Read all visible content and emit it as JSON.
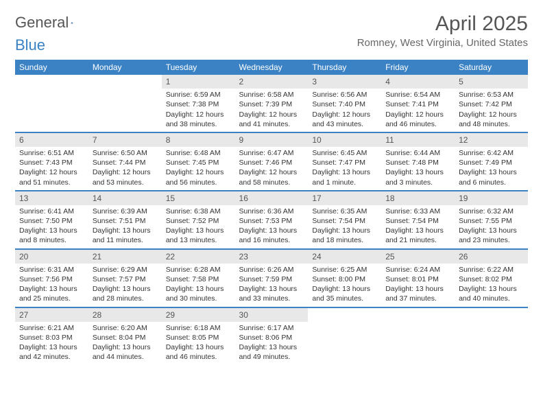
{
  "logo": {
    "part1": "General",
    "part2": "Blue"
  },
  "title": "April 2025",
  "location": "Romney, West Virginia, United States",
  "colors": {
    "accent": "#3b82c4",
    "daynum_bg": "#e8e8e8",
    "text": "#333333",
    "muted": "#555555",
    "background": "#ffffff"
  },
  "fonts": {
    "base": "Arial",
    "title_size": 30,
    "location_size": 15,
    "header_size": 12,
    "cell_size": 10.5
  },
  "day_headers": [
    "Sunday",
    "Monday",
    "Tuesday",
    "Wednesday",
    "Thursday",
    "Friday",
    "Saturday"
  ],
  "weeks": [
    [
      {
        "empty": true
      },
      {
        "empty": true
      },
      {
        "day": "1",
        "sunrise": "Sunrise: 6:59 AM",
        "sunset": "Sunset: 7:38 PM",
        "daylight": "Daylight: 12 hours and 38 minutes."
      },
      {
        "day": "2",
        "sunrise": "Sunrise: 6:58 AM",
        "sunset": "Sunset: 7:39 PM",
        "daylight": "Daylight: 12 hours and 41 minutes."
      },
      {
        "day": "3",
        "sunrise": "Sunrise: 6:56 AM",
        "sunset": "Sunset: 7:40 PM",
        "daylight": "Daylight: 12 hours and 43 minutes."
      },
      {
        "day": "4",
        "sunrise": "Sunrise: 6:54 AM",
        "sunset": "Sunset: 7:41 PM",
        "daylight": "Daylight: 12 hours and 46 minutes."
      },
      {
        "day": "5",
        "sunrise": "Sunrise: 6:53 AM",
        "sunset": "Sunset: 7:42 PM",
        "daylight": "Daylight: 12 hours and 48 minutes."
      }
    ],
    [
      {
        "day": "6",
        "sunrise": "Sunrise: 6:51 AM",
        "sunset": "Sunset: 7:43 PM",
        "daylight": "Daylight: 12 hours and 51 minutes."
      },
      {
        "day": "7",
        "sunrise": "Sunrise: 6:50 AM",
        "sunset": "Sunset: 7:44 PM",
        "daylight": "Daylight: 12 hours and 53 minutes."
      },
      {
        "day": "8",
        "sunrise": "Sunrise: 6:48 AM",
        "sunset": "Sunset: 7:45 PM",
        "daylight": "Daylight: 12 hours and 56 minutes."
      },
      {
        "day": "9",
        "sunrise": "Sunrise: 6:47 AM",
        "sunset": "Sunset: 7:46 PM",
        "daylight": "Daylight: 12 hours and 58 minutes."
      },
      {
        "day": "10",
        "sunrise": "Sunrise: 6:45 AM",
        "sunset": "Sunset: 7:47 PM",
        "daylight": "Daylight: 13 hours and 1 minute."
      },
      {
        "day": "11",
        "sunrise": "Sunrise: 6:44 AM",
        "sunset": "Sunset: 7:48 PM",
        "daylight": "Daylight: 13 hours and 3 minutes."
      },
      {
        "day": "12",
        "sunrise": "Sunrise: 6:42 AM",
        "sunset": "Sunset: 7:49 PM",
        "daylight": "Daylight: 13 hours and 6 minutes."
      }
    ],
    [
      {
        "day": "13",
        "sunrise": "Sunrise: 6:41 AM",
        "sunset": "Sunset: 7:50 PM",
        "daylight": "Daylight: 13 hours and 8 minutes."
      },
      {
        "day": "14",
        "sunrise": "Sunrise: 6:39 AM",
        "sunset": "Sunset: 7:51 PM",
        "daylight": "Daylight: 13 hours and 11 minutes."
      },
      {
        "day": "15",
        "sunrise": "Sunrise: 6:38 AM",
        "sunset": "Sunset: 7:52 PM",
        "daylight": "Daylight: 13 hours and 13 minutes."
      },
      {
        "day": "16",
        "sunrise": "Sunrise: 6:36 AM",
        "sunset": "Sunset: 7:53 PM",
        "daylight": "Daylight: 13 hours and 16 minutes."
      },
      {
        "day": "17",
        "sunrise": "Sunrise: 6:35 AM",
        "sunset": "Sunset: 7:54 PM",
        "daylight": "Daylight: 13 hours and 18 minutes."
      },
      {
        "day": "18",
        "sunrise": "Sunrise: 6:33 AM",
        "sunset": "Sunset: 7:54 PM",
        "daylight": "Daylight: 13 hours and 21 minutes."
      },
      {
        "day": "19",
        "sunrise": "Sunrise: 6:32 AM",
        "sunset": "Sunset: 7:55 PM",
        "daylight": "Daylight: 13 hours and 23 minutes."
      }
    ],
    [
      {
        "day": "20",
        "sunrise": "Sunrise: 6:31 AM",
        "sunset": "Sunset: 7:56 PM",
        "daylight": "Daylight: 13 hours and 25 minutes."
      },
      {
        "day": "21",
        "sunrise": "Sunrise: 6:29 AM",
        "sunset": "Sunset: 7:57 PM",
        "daylight": "Daylight: 13 hours and 28 minutes."
      },
      {
        "day": "22",
        "sunrise": "Sunrise: 6:28 AM",
        "sunset": "Sunset: 7:58 PM",
        "daylight": "Daylight: 13 hours and 30 minutes."
      },
      {
        "day": "23",
        "sunrise": "Sunrise: 6:26 AM",
        "sunset": "Sunset: 7:59 PM",
        "daylight": "Daylight: 13 hours and 33 minutes."
      },
      {
        "day": "24",
        "sunrise": "Sunrise: 6:25 AM",
        "sunset": "Sunset: 8:00 PM",
        "daylight": "Daylight: 13 hours and 35 minutes."
      },
      {
        "day": "25",
        "sunrise": "Sunrise: 6:24 AM",
        "sunset": "Sunset: 8:01 PM",
        "daylight": "Daylight: 13 hours and 37 minutes."
      },
      {
        "day": "26",
        "sunrise": "Sunrise: 6:22 AM",
        "sunset": "Sunset: 8:02 PM",
        "daylight": "Daylight: 13 hours and 40 minutes."
      }
    ],
    [
      {
        "day": "27",
        "sunrise": "Sunrise: 6:21 AM",
        "sunset": "Sunset: 8:03 PM",
        "daylight": "Daylight: 13 hours and 42 minutes."
      },
      {
        "day": "28",
        "sunrise": "Sunrise: 6:20 AM",
        "sunset": "Sunset: 8:04 PM",
        "daylight": "Daylight: 13 hours and 44 minutes."
      },
      {
        "day": "29",
        "sunrise": "Sunrise: 6:18 AM",
        "sunset": "Sunset: 8:05 PM",
        "daylight": "Daylight: 13 hours and 46 minutes."
      },
      {
        "day": "30",
        "sunrise": "Sunrise: 6:17 AM",
        "sunset": "Sunset: 8:06 PM",
        "daylight": "Daylight: 13 hours and 49 minutes."
      },
      {
        "empty": true
      },
      {
        "empty": true
      },
      {
        "empty": true
      }
    ]
  ]
}
